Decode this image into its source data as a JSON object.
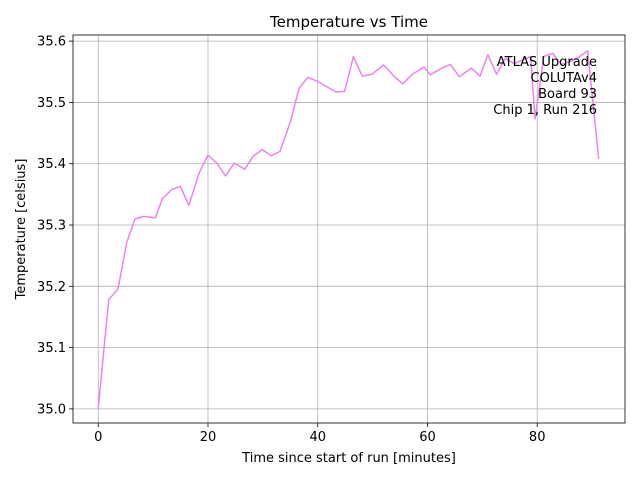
{
  "chart_data": {
    "type": "line",
    "title": "Temperature vs Time",
    "xlabel": "Time since start of run [minutes]",
    "ylabel": "Temperature [celsius]",
    "xlim": [
      -4.6,
      96
    ],
    "ylim": [
      34.977,
      35.61
    ],
    "xticks": [
      0,
      20,
      40,
      60,
      80
    ],
    "xtick_labels": [
      "0",
      "20",
      "40",
      "60",
      "80"
    ],
    "yticks": [
      35.0,
      35.1,
      35.2,
      35.3,
      35.4,
      35.5,
      35.6
    ],
    "ytick_labels": [
      "35.0",
      "35.1",
      "35.2",
      "35.3",
      "35.4",
      "35.5",
      "35.6"
    ],
    "grid": true,
    "annotation": [
      "ATLAS Upgrade",
      "COLUTAv4",
      "Board 93",
      "Chip 1, Run 216"
    ],
    "series": [
      {
        "color": "#ee82ee",
        "x": [
          0,
          1.9,
          3.6,
          5.2,
          6.7,
          8.3,
          10.4,
          11.7,
          13.4,
          15.0,
          16.5,
          18.4,
          20.0,
          21.6,
          23.2,
          24.8,
          26.7,
          28.3,
          29.9,
          31.5,
          33.1,
          35.0,
          36.6,
          38.2,
          39.8,
          41.4,
          43.3,
          44.9,
          46.5,
          48.1,
          49.9,
          52.0,
          53.9,
          55.5,
          57.1,
          59.4,
          60.5,
          62.6,
          64.2,
          65.8,
          68.0,
          69.6,
          71.0,
          72.6,
          74.2,
          75.8,
          77.5,
          78.8,
          79.6,
          81.2,
          82.8,
          84.4,
          86.0,
          87.6,
          89.2,
          91.2
        ],
        "y": [
          35.0,
          35.178,
          35.196,
          35.272,
          35.31,
          35.314,
          35.312,
          35.343,
          35.358,
          35.363,
          35.332,
          35.385,
          35.414,
          35.401,
          35.38,
          35.401,
          35.391,
          35.413,
          35.423,
          35.413,
          35.42,
          35.468,
          35.523,
          35.541,
          35.535,
          35.527,
          35.517,
          35.518,
          35.575,
          35.543,
          35.546,
          35.561,
          35.543,
          35.53,
          35.545,
          35.558,
          35.545,
          35.556,
          35.562,
          35.542,
          35.556,
          35.543,
          35.578,
          35.546,
          35.572,
          35.563,
          35.57,
          35.575,
          35.473,
          35.575,
          35.58,
          35.562,
          35.567,
          35.574,
          35.584,
          35.408
        ]
      }
    ]
  }
}
